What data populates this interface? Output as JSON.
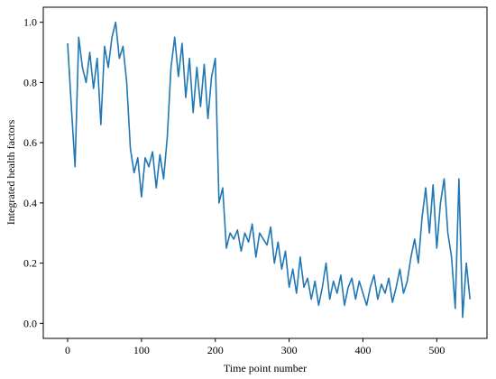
{
  "chart_data": {
    "type": "line",
    "xlabel": "Time point number",
    "ylabel": "Integrated health factors",
    "x": [
      0,
      5,
      10,
      15,
      20,
      25,
      30,
      35,
      40,
      45,
      50,
      55,
      60,
      65,
      70,
      75,
      80,
      85,
      90,
      95,
      100,
      105,
      110,
      115,
      120,
      125,
      130,
      135,
      140,
      145,
      150,
      155,
      160,
      165,
      170,
      175,
      180,
      185,
      190,
      195,
      200,
      205,
      210,
      215,
      220,
      225,
      230,
      235,
      240,
      245,
      250,
      255,
      260,
      265,
      270,
      275,
      280,
      285,
      290,
      295,
      300,
      305,
      310,
      315,
      320,
      325,
      330,
      335,
      340,
      345,
      350,
      355,
      360,
      365,
      370,
      375,
      380,
      385,
      390,
      395,
      400,
      405,
      410,
      415,
      420,
      425,
      430,
      435,
      440,
      445,
      450,
      455,
      460,
      465,
      470,
      475,
      480,
      485,
      490,
      495,
      500,
      505,
      510,
      515,
      520,
      525,
      530,
      535,
      540,
      545
    ],
    "series": [
      {
        "name": "Integrated health factors",
        "color": "#1f77b4",
        "values": [
          0.93,
          0.72,
          0.52,
          0.95,
          0.85,
          0.8,
          0.9,
          0.78,
          0.88,
          0.66,
          0.92,
          0.85,
          0.95,
          1.0,
          0.88,
          0.92,
          0.8,
          0.58,
          0.5,
          0.55,
          0.42,
          0.55,
          0.52,
          0.57,
          0.45,
          0.56,
          0.48,
          0.62,
          0.85,
          0.95,
          0.82,
          0.93,
          0.75,
          0.88,
          0.7,
          0.85,
          0.72,
          0.86,
          0.68,
          0.82,
          0.88,
          0.4,
          0.45,
          0.25,
          0.3,
          0.28,
          0.31,
          0.24,
          0.3,
          0.27,
          0.33,
          0.22,
          0.3,
          0.28,
          0.26,
          0.32,
          0.2,
          0.27,
          0.18,
          0.24,
          0.12,
          0.18,
          0.1,
          0.22,
          0.12,
          0.15,
          0.08,
          0.14,
          0.06,
          0.12,
          0.2,
          0.08,
          0.14,
          0.1,
          0.16,
          0.06,
          0.12,
          0.15,
          0.08,
          0.14,
          0.1,
          0.06,
          0.12,
          0.16,
          0.08,
          0.13,
          0.1,
          0.15,
          0.07,
          0.12,
          0.18,
          0.1,
          0.14,
          0.22,
          0.28,
          0.2,
          0.35,
          0.45,
          0.3,
          0.46,
          0.25,
          0.4,
          0.48,
          0.3,
          0.22,
          0.05,
          0.48,
          0.02,
          0.2,
          0.08
        ]
      }
    ],
    "xlim": [
      -33,
      568
    ],
    "ylim": [
      -0.05,
      1.05
    ],
    "xticks": [
      0,
      100,
      200,
      300,
      400,
      500
    ],
    "yticks": [
      {
        "value": 0,
        "label": "0.0"
      },
      0.2,
      0.4,
      0.6,
      0.8,
      {
        "value": 1,
        "label": "1.0"
      }
    ]
  }
}
